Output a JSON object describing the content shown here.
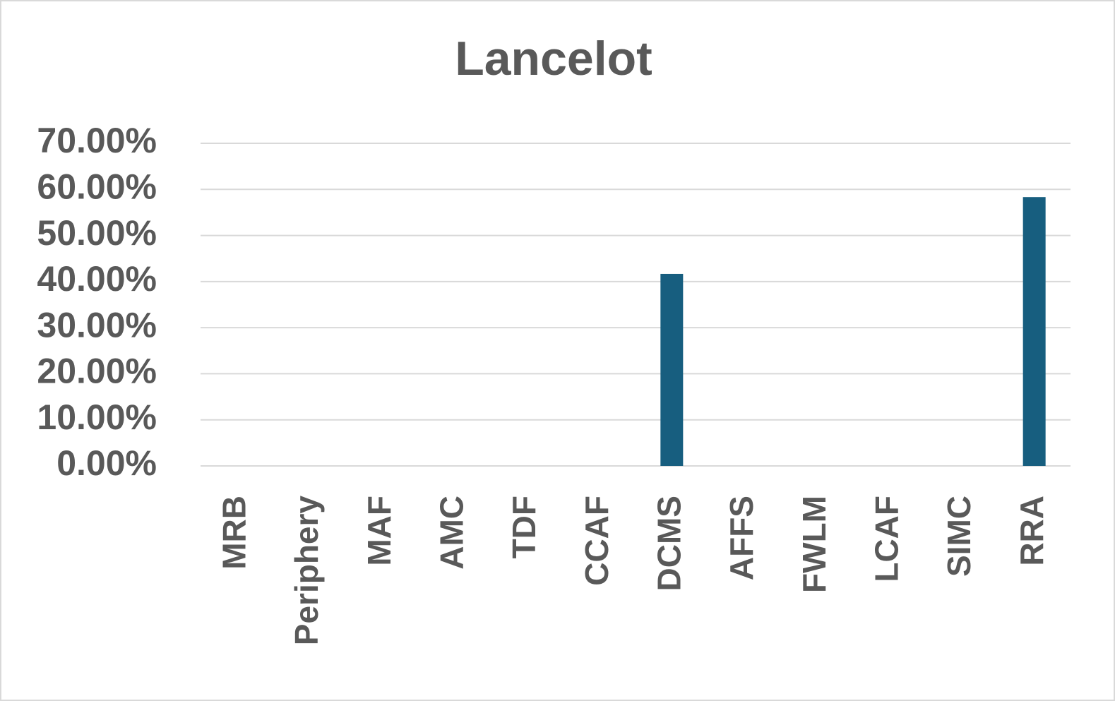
{
  "chart_data": {
    "type": "bar",
    "title": "Lancelot",
    "categories": [
      "MRB",
      "Periphery",
      "MAF",
      "AMC",
      "TDF",
      "CCAF",
      "DCMS",
      "AFFS",
      "FWLM",
      "LCAF",
      "SIMC",
      "RRA"
    ],
    "values": [
      0,
      0,
      0,
      0,
      0,
      0,
      41.67,
      0,
      0,
      0,
      0,
      58.33
    ],
    "color": "#175e7f",
    "ylim": [
      0,
      70
    ],
    "yticks": [
      {
        "value": 0,
        "label": "0.00%"
      },
      {
        "value": 10,
        "label": "10.00%"
      },
      {
        "value": 20,
        "label": "20.00%"
      },
      {
        "value": 30,
        "label": "30.00%"
      },
      {
        "value": 40,
        "label": "40.00%"
      },
      {
        "value": 50,
        "label": "50.00%"
      },
      {
        "value": 60,
        "label": "60.00%"
      },
      {
        "value": 70,
        "label": "70.00%"
      }
    ],
    "grid": true
  }
}
